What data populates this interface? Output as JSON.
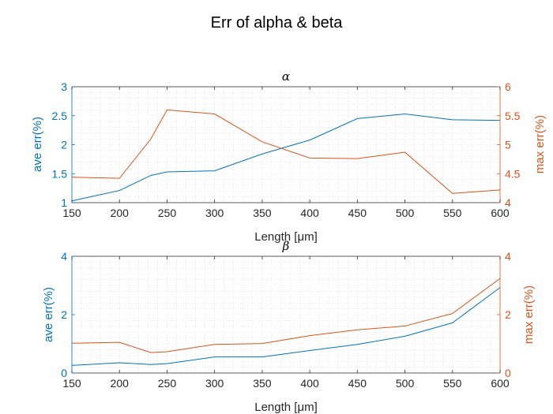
{
  "figure": {
    "title": "Err of alpha & beta"
  },
  "colors": {
    "left_axis": "#0072BD",
    "right_axis": "#D95319",
    "axis": "#262626",
    "grid": "#dcdcdc"
  },
  "chart_data": [
    {
      "type": "line",
      "title": "α",
      "xlabel": "Length [μm]",
      "ylabel_left": "ave err(%)",
      "ylabel_right": "max err(%)",
      "xlim": [
        150,
        600
      ],
      "ylim_left": [
        1,
        3
      ],
      "ylim_right": [
        4,
        6
      ],
      "xticks": [
        150,
        200,
        250,
        300,
        350,
        400,
        450,
        500,
        550,
        600
      ],
      "yticks_left": [
        "1",
        "1.5",
        "2",
        "2.5",
        "3"
      ],
      "yticks_right": [
        "4",
        "4.5",
        "5",
        "5.5",
        "6"
      ],
      "grid": true,
      "x": [
        150,
        200,
        233,
        250,
        300,
        350,
        400,
        450,
        500,
        550,
        600
      ],
      "series": [
        {
          "axis": "left",
          "color": "#0072BD",
          "values": [
            1.03,
            1.21,
            1.47,
            1.53,
            1.55,
            1.84,
            2.08,
            2.45,
            2.53,
            2.43,
            2.42
          ]
        },
        {
          "axis": "right",
          "color": "#D95319",
          "values": [
            4.44,
            4.42,
            5.1,
            5.6,
            5.53,
            5.05,
            4.77,
            4.76,
            4.87,
            4.16,
            4.22
          ]
        }
      ]
    },
    {
      "type": "line",
      "title": "β",
      "xlabel": "Length [μm]",
      "ylabel_left": "ave err(%)",
      "ylabel_right": "max err(%)",
      "xlim": [
        150,
        600
      ],
      "ylim_left": [
        0,
        4
      ],
      "ylim_right": [
        0,
        4
      ],
      "xticks": [
        150,
        200,
        250,
        300,
        350,
        400,
        450,
        500,
        550,
        600
      ],
      "yticks_left": [
        "0",
        "2",
        "4"
      ],
      "yticks_right": [
        "0",
        "2",
        "4"
      ],
      "grid": true,
      "x": [
        150,
        200,
        233,
        250,
        300,
        350,
        400,
        450,
        500,
        550,
        600
      ],
      "series": [
        {
          "axis": "left",
          "color": "#0072BD",
          "values": [
            0.26,
            0.35,
            0.29,
            0.32,
            0.55,
            0.55,
            0.77,
            0.98,
            1.26,
            1.72,
            2.93
          ]
        },
        {
          "axis": "right",
          "color": "#D95319",
          "values": [
            1.02,
            1.05,
            0.7,
            0.73,
            0.98,
            1.01,
            1.28,
            1.48,
            1.61,
            2.04,
            3.24
          ]
        }
      ]
    }
  ]
}
